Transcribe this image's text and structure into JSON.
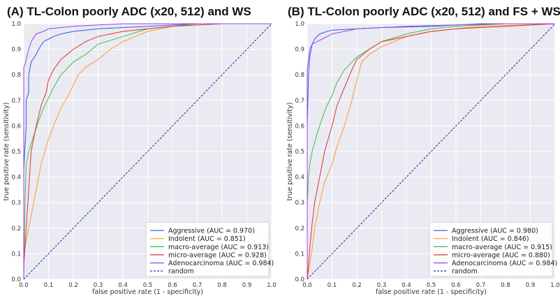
{
  "chart_data": [
    {
      "type": "line",
      "title": "(A) TL-Colon poorly ADC (x20, 512) and WS",
      "xlabel": "false positive rate (1 - specificity)",
      "ylabel": "true positive rate (sensitivity)",
      "xlim": [
        0,
        1
      ],
      "ylim": [
        0,
        1
      ],
      "xticks": [
        "0.0",
        "0.1",
        "0.2",
        "0.3",
        "0.4",
        "0.5",
        "0.6",
        "0.7",
        "0.8",
        "0.9",
        "1.0"
      ],
      "yticks": [
        "0.0",
        "0.1",
        "0.2",
        "0.3",
        "0.4",
        "0.5",
        "0.6",
        "0.7",
        "0.8",
        "0.9",
        "1.0"
      ],
      "grid": true,
      "legend_position": "bottom-right",
      "series": [
        {
          "name": "Aggressive (AUC = 0.970)",
          "color": "#3355ee",
          "x": [
            0,
            0,
            0.005,
            0.01,
            0.01,
            0.02,
            0.02,
            0.03,
            0.05,
            0.06,
            0.08,
            0.1,
            0.12,
            0.15,
            0.2,
            0.3,
            0.5,
            0.7,
            1.0
          ],
          "y": [
            0,
            0.43,
            0.52,
            0.6,
            0.7,
            0.73,
            0.8,
            0.85,
            0.88,
            0.9,
            0.93,
            0.94,
            0.95,
            0.96,
            0.97,
            0.98,
            0.99,
            1.0,
            1.0
          ]
        },
        {
          "name": "Indolent (AUC = 0.851)",
          "color": "#ff9933",
          "x": [
            0,
            0,
            0.01,
            0.03,
            0.05,
            0.07,
            0.1,
            0.12,
            0.15,
            0.18,
            0.2,
            0.22,
            0.25,
            0.3,
            0.35,
            0.4,
            0.45,
            0.5,
            0.6,
            0.7,
            1.0
          ],
          "y": [
            0,
            0.1,
            0.15,
            0.25,
            0.35,
            0.45,
            0.55,
            0.6,
            0.67,
            0.72,
            0.76,
            0.8,
            0.83,
            0.86,
            0.9,
            0.93,
            0.95,
            0.97,
            0.99,
            1.0,
            1.0
          ]
        },
        {
          "name": "macro-average (AUC = 0.913)",
          "color": "#44bb44",
          "x": [
            0,
            0.005,
            0.01,
            0.02,
            0.04,
            0.06,
            0.08,
            0.1,
            0.12,
            0.15,
            0.2,
            0.25,
            0.3,
            0.4,
            0.5,
            0.6,
            0.7,
            1.0
          ],
          "y": [
            0,
            0.3,
            0.45,
            0.5,
            0.56,
            0.62,
            0.67,
            0.71,
            0.75,
            0.8,
            0.85,
            0.88,
            0.92,
            0.95,
            0.98,
            0.99,
            1.0,
            1.0
          ]
        },
        {
          "name": "micro-average (AUC = 0.928)",
          "color": "#dd3333",
          "x": [
            0,
            0,
            0.01,
            0.02,
            0.03,
            0.05,
            0.07,
            0.09,
            0.1,
            0.12,
            0.15,
            0.2,
            0.25,
            0.3,
            0.4,
            0.5,
            0.6,
            0.8,
            1.0
          ],
          "y": [
            0,
            0.05,
            0.2,
            0.35,
            0.5,
            0.6,
            0.68,
            0.73,
            0.78,
            0.82,
            0.86,
            0.9,
            0.93,
            0.95,
            0.97,
            0.98,
            0.99,
            1.0,
            1.0
          ]
        },
        {
          "name": "Adenocarcinoma (AUC = 0.984)",
          "color": "#9944ee",
          "x": [
            0,
            0,
            0.005,
            0.01,
            0.02,
            0.03,
            0.05,
            0.08,
            0.1,
            0.15,
            0.2,
            0.3,
            0.4,
            0.6,
            1.0
          ],
          "y": [
            0,
            0.83,
            0.84,
            0.86,
            0.9,
            0.93,
            0.96,
            0.97,
            0.98,
            0.985,
            0.99,
            0.995,
            1.0,
            1.0,
            1.0
          ]
        },
        {
          "name": "random",
          "color": "#2222aa",
          "dashed": true,
          "x": [
            0,
            1
          ],
          "y": [
            0,
            1
          ]
        }
      ]
    },
    {
      "type": "line",
      "title": "(B) TL-Colon poorly ADC (x20, 512) and FS + WS",
      "xlabel": "false positive rate (1 - specificity)",
      "ylabel": "true positive rate (sensitivity)",
      "xlim": [
        0,
        1
      ],
      "ylim": [
        0,
        1
      ],
      "xticks": [
        "0.0",
        "0.1",
        "0.2",
        "0.3",
        "0.4",
        "0.5",
        "0.6",
        "0.7",
        "0.8",
        "0.9",
        "1.0"
      ],
      "yticks": [
        "0.0",
        "0.1",
        "0.2",
        "0.3",
        "0.4",
        "0.5",
        "0.6",
        "0.7",
        "0.8",
        "0.9",
        "1.0"
      ],
      "grid": true,
      "legend_position": "bottom-right",
      "series": [
        {
          "name": "Aggressive (AUC = 0.980)",
          "color": "#3355ee",
          "x": [
            0,
            0,
            0.005,
            0.01,
            0.02,
            0.03,
            0.05,
            0.08,
            0.1,
            0.2,
            0.3,
            0.5,
            0.7,
            1.0
          ],
          "y": [
            0,
            0.6,
            0.8,
            0.87,
            0.92,
            0.94,
            0.96,
            0.97,
            0.975,
            0.98,
            0.985,
            0.99,
            1.0,
            1.0
          ]
        },
        {
          "name": "Indolent (AUC = 0.846)",
          "color": "#ff9933",
          "x": [
            0,
            0.01,
            0.02,
            0.03,
            0.05,
            0.07,
            0.1,
            0.12,
            0.15,
            0.18,
            0.2,
            0.22,
            0.25,
            0.3,
            0.35,
            0.4,
            0.5,
            0.6,
            0.7,
            1.0
          ],
          "y": [
            0,
            0.06,
            0.12,
            0.2,
            0.3,
            0.38,
            0.45,
            0.52,
            0.6,
            0.7,
            0.78,
            0.85,
            0.88,
            0.91,
            0.93,
            0.95,
            0.97,
            0.98,
            0.99,
            1.0
          ]
        },
        {
          "name": "macro-average (AUC = 0.915)",
          "color": "#44bb44",
          "x": [
            0,
            0,
            0.005,
            0.01,
            0.02,
            0.04,
            0.06,
            0.08,
            0.1,
            0.12,
            0.15,
            0.2,
            0.25,
            0.3,
            0.4,
            0.5,
            0.6,
            0.8,
            1.0
          ],
          "y": [
            0,
            0.3,
            0.4,
            0.45,
            0.5,
            0.57,
            0.63,
            0.68,
            0.72,
            0.77,
            0.82,
            0.87,
            0.9,
            0.93,
            0.96,
            0.98,
            0.99,
            1.0,
            1.0
          ]
        },
        {
          "name": "micro-average (AUC = 0.880)",
          "color": "#dd3333",
          "x": [
            0,
            0.01,
            0.02,
            0.03,
            0.05,
            0.07,
            0.1,
            0.12,
            0.15,
            0.18,
            0.2,
            0.25,
            0.3,
            0.35,
            0.4,
            0.5,
            0.6,
            0.8,
            1.0
          ],
          "y": [
            0,
            0.12,
            0.22,
            0.3,
            0.4,
            0.5,
            0.6,
            0.68,
            0.75,
            0.82,
            0.86,
            0.9,
            0.93,
            0.94,
            0.95,
            0.97,
            0.98,
            0.99,
            1.0
          ]
        },
        {
          "name": "Adenocarcinoma (AUC = 0.984)",
          "color": "#9944ee",
          "x": [
            0,
            0,
            0.005,
            0.01,
            0.02,
            0.04,
            0.06,
            0.08,
            0.1,
            0.15,
            0.2,
            0.3,
            0.4,
            0.6,
            0.8,
            1.0
          ],
          "y": [
            0,
            0.82,
            0.86,
            0.9,
            0.92,
            0.93,
            0.94,
            0.95,
            0.96,
            0.97,
            0.98,
            0.985,
            0.99,
            0.995,
            1.0,
            1.0
          ]
        },
        {
          "name": "random",
          "color": "#2222aa",
          "dashed": true,
          "x": [
            0,
            1
          ],
          "y": [
            0,
            1
          ]
        }
      ]
    }
  ]
}
